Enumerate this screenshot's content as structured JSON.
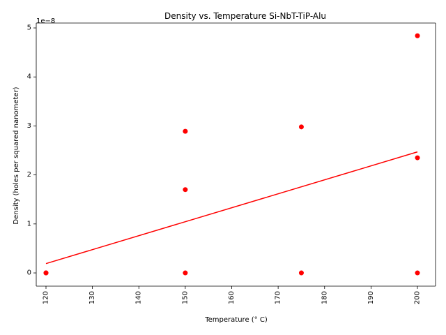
{
  "chart_data": {
    "type": "scatter",
    "title": "Density vs. Temperature Si-NbT-TiP-Alu",
    "xlabel": "Temperature (° C)",
    "ylabel": "Density (holes per squared nanometer)",
    "y_offset_label": "1e−8",
    "xlim": [
      117.9,
      203.9
    ],
    "ylim": [
      -0.27,
      5.1
    ],
    "x_ticks": [
      120,
      130,
      140,
      150,
      160,
      170,
      180,
      190,
      200
    ],
    "y_ticks": [
      0,
      1,
      2,
      3,
      4,
      5
    ],
    "y_scale_factor": 1e-08,
    "grid": false,
    "x_tick_rotation": 90,
    "series": [
      {
        "color": "#ff0000",
        "points": [
          {
            "x": 120,
            "y": 0.0
          },
          {
            "x": 120,
            "y": 0.0
          },
          {
            "x": 150,
            "y": 2.89
          },
          {
            "x": 150,
            "y": 1.7
          },
          {
            "x": 150,
            "y": 0.0
          },
          {
            "x": 175,
            "y": 2.98
          },
          {
            "x": 175,
            "y": 0.0
          },
          {
            "x": 200,
            "y": 4.84
          },
          {
            "x": 200,
            "y": 2.35
          },
          {
            "x": 200,
            "y": 0.0
          }
        ]
      }
    ],
    "trendline": {
      "color": "#ff0000",
      "x": [
        120,
        200
      ],
      "y": [
        0.19,
        2.47
      ]
    }
  }
}
